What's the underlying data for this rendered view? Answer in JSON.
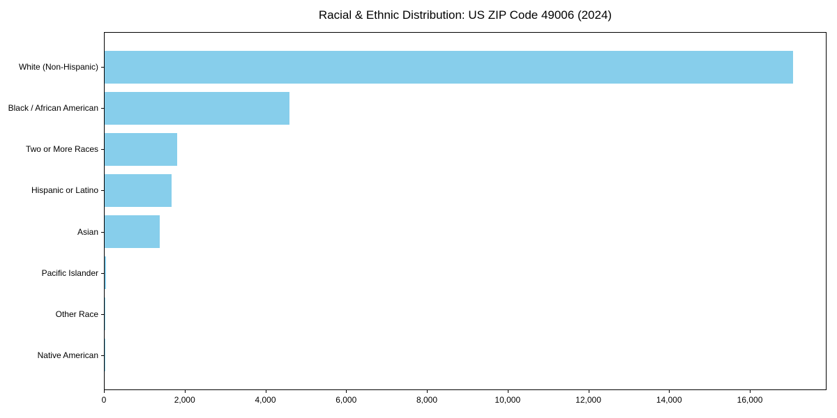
{
  "chart_data": {
    "type": "bar",
    "orientation": "horizontal",
    "title": "Racial & Ethnic Distribution: US ZIP Code 49006 (2024)",
    "categories": [
      "White (Non-Hispanic)",
      "Black / African American",
      "Two or More Races",
      "Hispanic or Latino",
      "Asian",
      "Pacific Islander",
      "Other Race",
      "Native American"
    ],
    "values": [
      17050,
      4580,
      1790,
      1660,
      1370,
      40,
      25,
      15
    ],
    "xlabel": "",
    "ylabel": "",
    "xlim": [
      0,
      17900
    ],
    "xtick_values": [
      0,
      2000,
      4000,
      6000,
      8000,
      10000,
      12000,
      14000,
      16000
    ],
    "xtick_labels": [
      "0",
      "2,000",
      "4,000",
      "6,000",
      "8,000",
      "10,000",
      "12,000",
      "14,000",
      "16,000"
    ],
    "bar_color": "#87CEEB",
    "axis_color": "#000000",
    "text_color": "#000000",
    "background_color": "#FFFFFF",
    "grid": false,
    "legend": null
  }
}
